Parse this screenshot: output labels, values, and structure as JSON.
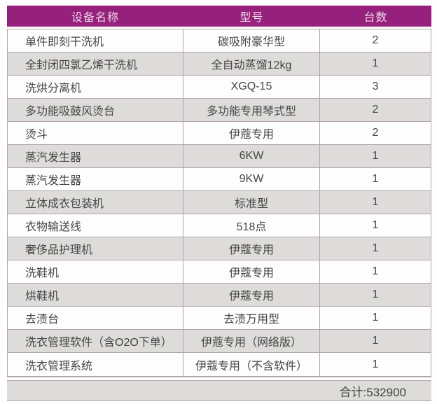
{
  "table": {
    "headers": [
      "设备名称",
      "型号",
      "台数"
    ],
    "rows": [
      {
        "name": "单件即刻干洗机",
        "model": "碳吸附豪华型",
        "qty": "2"
      },
      {
        "name": "全封闭四氯乙烯干洗机",
        "model": "全自动蒸馏12kg",
        "qty": "1"
      },
      {
        "name": "洗烘分离机",
        "model": "XGQ-15",
        "qty": "3"
      },
      {
        "name": "多功能吸鼓风烫台",
        "model": "多功能专用琴式型",
        "qty": "2"
      },
      {
        "name": "烫斗",
        "model": "伊蔻专用",
        "qty": "2"
      },
      {
        "name": "蒸汽发生器",
        "model": "6KW",
        "qty": "1"
      },
      {
        "name": "蒸汽发生器",
        "model": "9KW",
        "qty": "1"
      },
      {
        "name": "立体成衣包装机",
        "model": "标准型",
        "qty": "1"
      },
      {
        "name": "衣物输送线",
        "model": "518点",
        "qty": "1"
      },
      {
        "name": "奢侈品护理机",
        "model": "伊蔻专用",
        "qty": "1"
      },
      {
        "name": "洗鞋机",
        "model": "伊蔻专用",
        "qty": "1"
      },
      {
        "name": "烘鞋机",
        "model": "伊蔻专用",
        "qty": "1"
      },
      {
        "name": "去渍台",
        "model": "去渍万用型",
        "qty": "1"
      },
      {
        "name": "洗衣管理软件（含O2O下单）",
        "model": "伊蔻专用（网络版）",
        "qty": "1"
      },
      {
        "name": "洗衣管理系统",
        "model": "伊蔻专用（不含软件）",
        "qty": "1"
      }
    ],
    "footer": {
      "total": "合计:532900"
    }
  },
  "colors": {
    "header_bg": "#96217d",
    "header_text": "#eed7e6",
    "row_bg": "#fdfdfd",
    "row_alt_bg": "#dddcda",
    "border": "#b3a4ac",
    "text": "#474645"
  }
}
